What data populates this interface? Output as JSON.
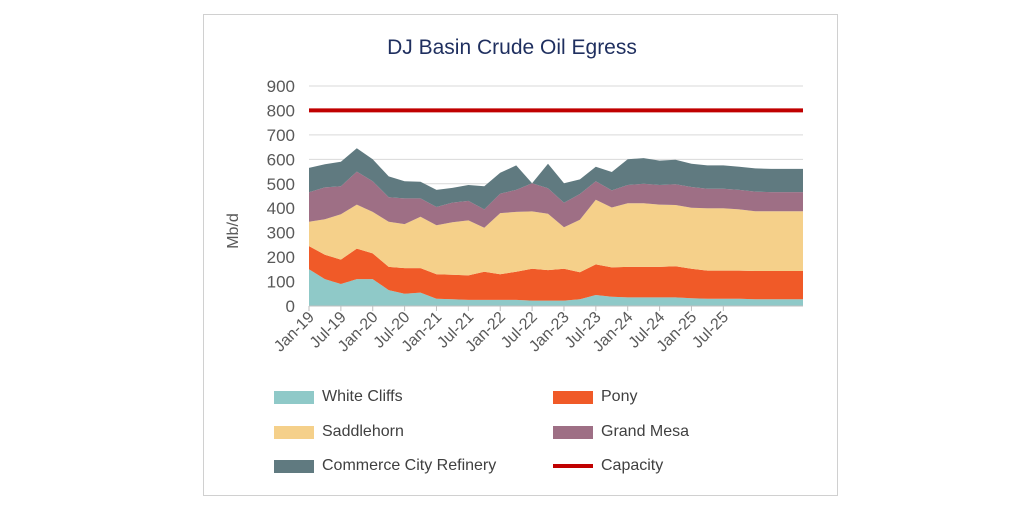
{
  "chart_data": {
    "type": "area",
    "title": "DJ Basin Crude Oil Egress",
    "ylabel": "Mb/d",
    "ylim": [
      0,
      900
    ],
    "yticks": [
      0,
      100,
      200,
      300,
      400,
      500,
      600,
      700,
      800,
      900
    ],
    "grid": true,
    "legend_position": "bottom",
    "x_tick_labels": [
      "Jan-19",
      "Jul-19",
      "Jan-20",
      "Jul-20",
      "Jan-21",
      "Jul-21",
      "Jan-22",
      "Jul-22",
      "Jan-23",
      "Jul-23",
      "Jan-24",
      "Jul-24",
      "Jan-25",
      "Jul-25"
    ],
    "x_start": "Jan-19",
    "x_period": "quarterly",
    "series": [
      {
        "name": "White Cliffs",
        "color": "#8fc9c8",
        "stacked": true,
        "values": [
          150,
          110,
          90,
          110,
          110,
          65,
          50,
          55,
          30,
          28,
          25,
          25,
          25,
          25,
          22,
          22,
          22,
          28,
          45,
          38,
          35,
          35,
          35,
          35,
          32,
          30,
          30,
          30,
          28,
          28,
          28,
          28
        ]
      },
      {
        "name": "Pony",
        "color": "#f05a28",
        "stacked": true,
        "values": [
          95,
          100,
          100,
          125,
          105,
          95,
          105,
          100,
          100,
          100,
          100,
          115,
          105,
          115,
          130,
          125,
          130,
          110,
          125,
          120,
          125,
          125,
          125,
          128,
          120,
          115,
          115,
          115,
          115,
          115,
          115,
          115
        ]
      },
      {
        "name": "Saddlehorn",
        "color": "#f5d08a",
        "stacked": true,
        "values": [
          100,
          145,
          185,
          180,
          170,
          185,
          180,
          210,
          200,
          215,
          225,
          180,
          250,
          245,
          235,
          230,
          170,
          215,
          265,
          245,
          260,
          260,
          255,
          250,
          250,
          255,
          255,
          250,
          245,
          245,
          245,
          245
        ]
      },
      {
        "name": "Grand Mesa",
        "color": "#9e6f85",
        "stacked": true,
        "values": [
          120,
          130,
          115,
          135,
          125,
          100,
          105,
          75,
          75,
          80,
          80,
          75,
          80,
          90,
          115,
          105,
          100,
          105,
          75,
          70,
          75,
          80,
          80,
          85,
          85,
          80,
          80,
          80,
          80,
          78,
          78,
          78
        ]
      },
      {
        "name": "Commerce City Refinery",
        "color": "#607a80",
        "stacked": true,
        "values": [
          100,
          95,
          100,
          95,
          90,
          85,
          70,
          68,
          70,
          60,
          65,
          95,
          85,
          100,
          0,
          100,
          80,
          60,
          60,
          75,
          105,
          105,
          100,
          100,
          95,
          95,
          95,
          95,
          95,
          95,
          95,
          95
        ]
      },
      {
        "name": "Capacity",
        "color": "#c00000",
        "type": "line",
        "values": [
          800,
          800,
          800,
          800,
          800,
          800,
          800,
          800,
          800,
          800,
          800,
          800,
          800,
          800,
          800,
          800,
          800,
          800,
          800,
          800,
          800,
          800,
          800,
          800,
          800,
          800,
          800,
          800,
          800,
          800,
          800,
          800
        ]
      }
    ]
  }
}
